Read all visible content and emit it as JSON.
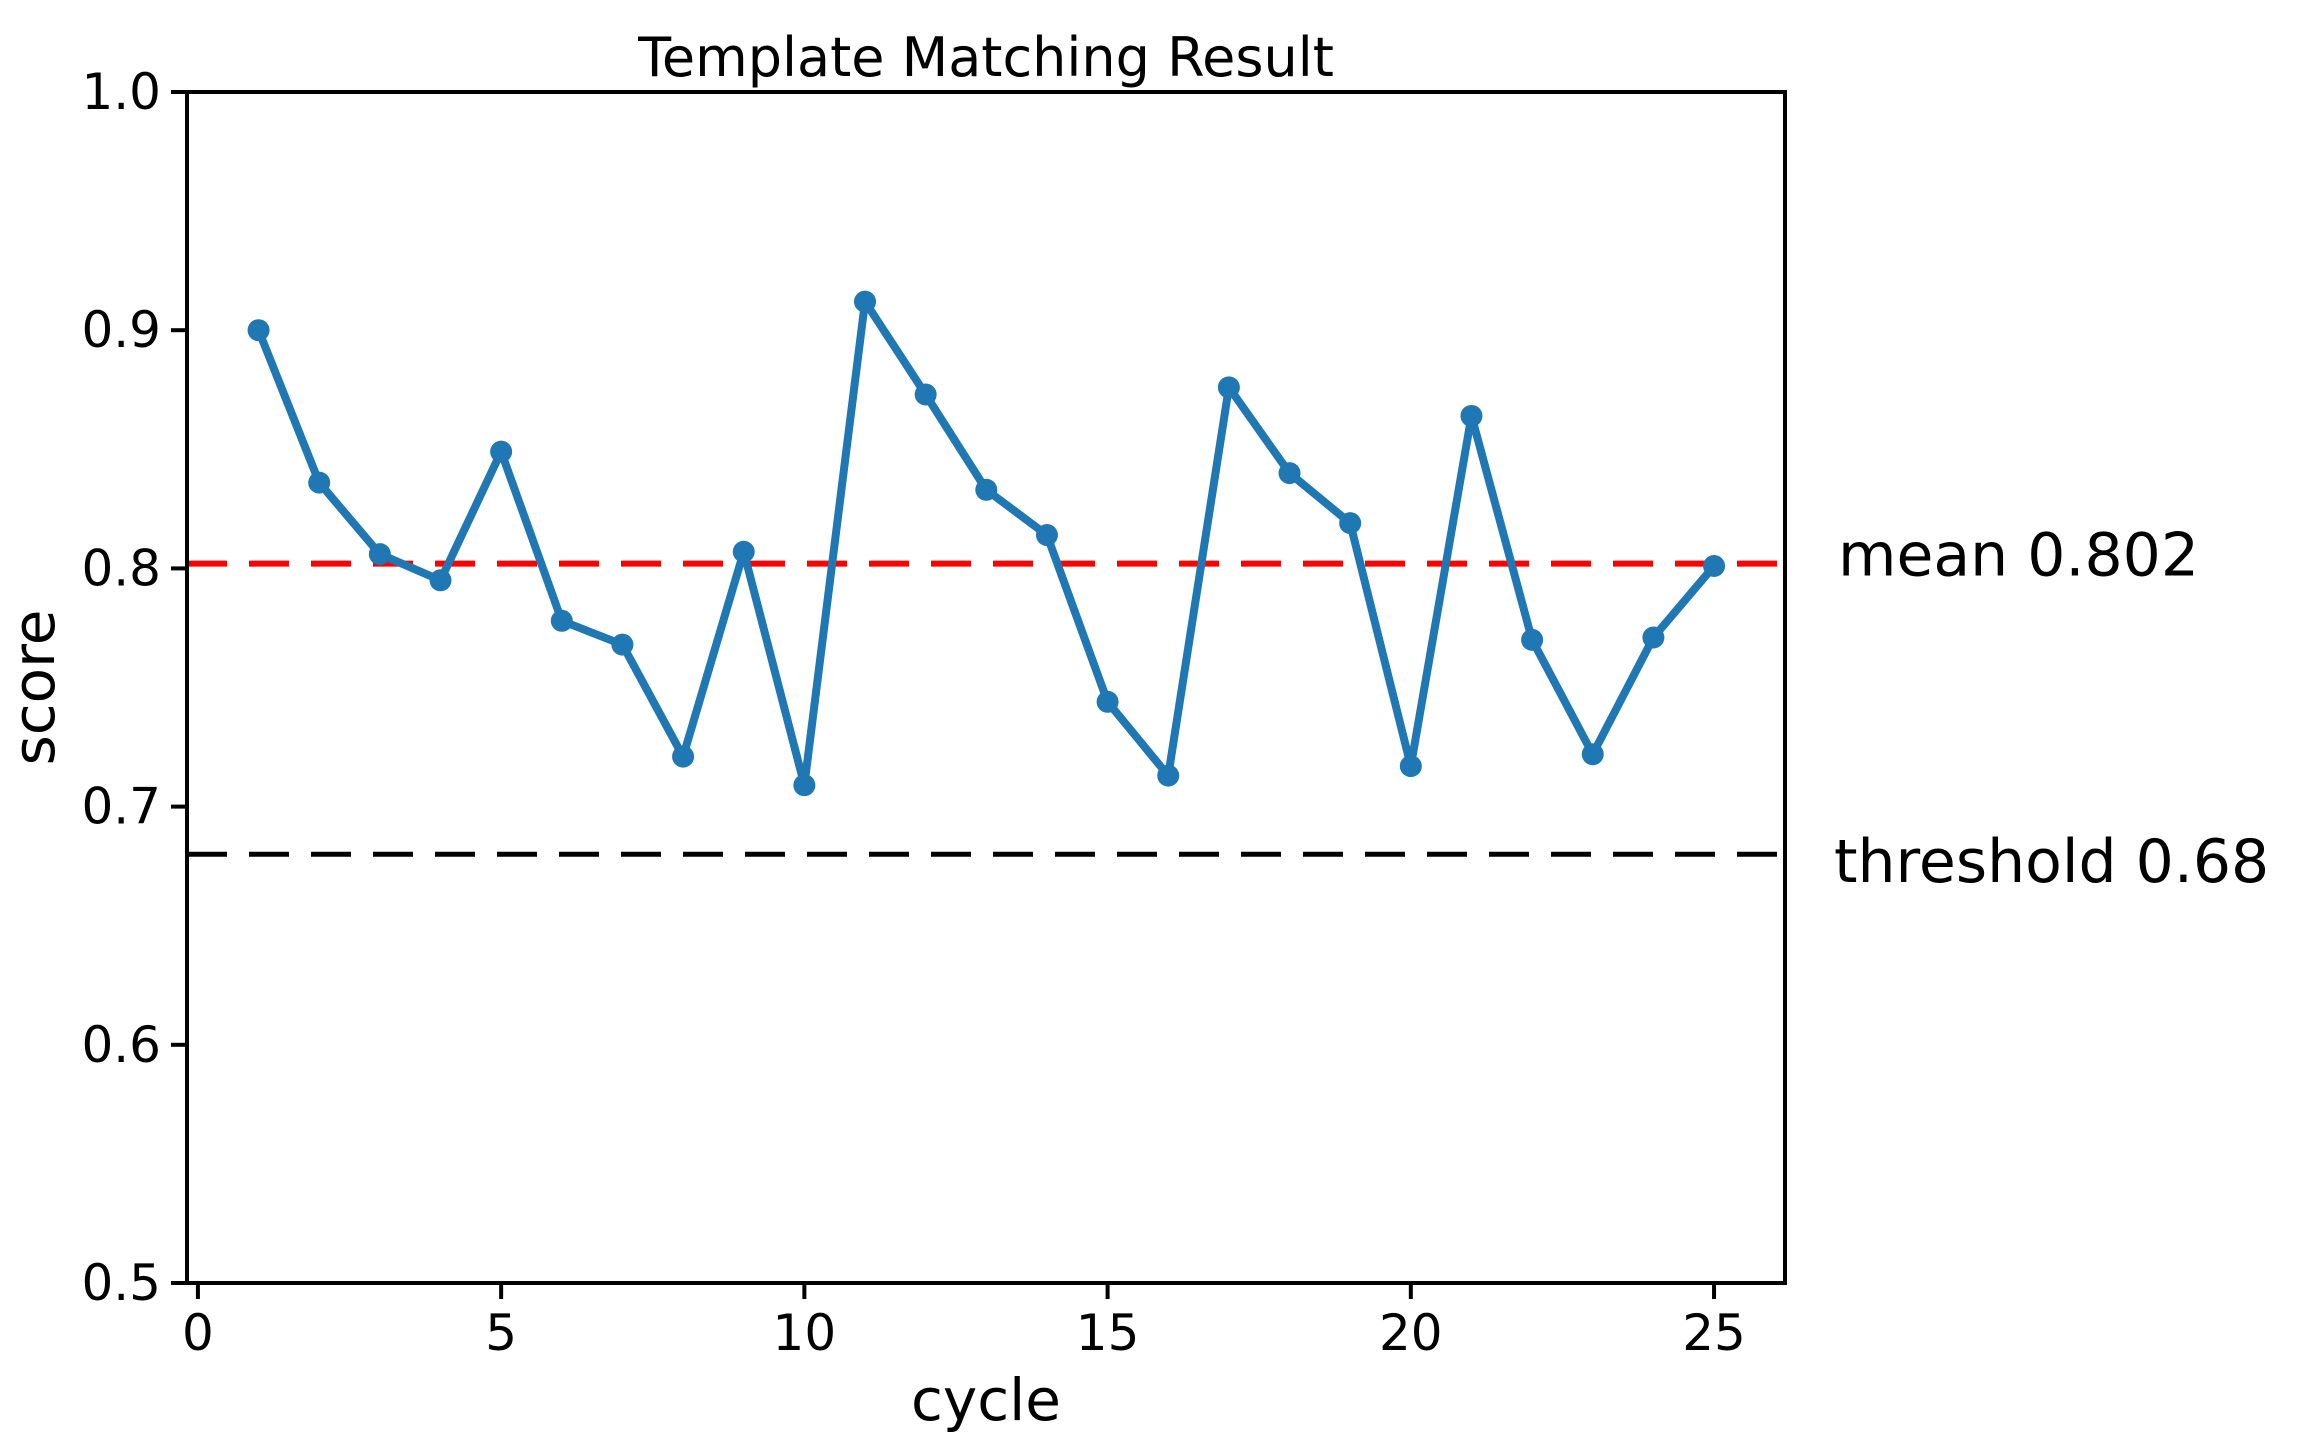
{
  "figure": {
    "title": "Template Matching Result",
    "xlabel": "cycle",
    "ylabel": "score"
  },
  "annotations": {
    "mean_label": "mean 0.802",
    "threshold_label": "threshold 0.68"
  },
  "colors": {
    "series": "#1f77b4",
    "mean_line": "#ff0000",
    "threshold_line": "#000000",
    "axis": "#000000",
    "background": "#ffffff"
  },
  "chart_data": {
    "type": "line",
    "title": "Template Matching Result",
    "xlabel": "cycle",
    "ylabel": "score",
    "x": [
      1,
      2,
      3,
      4,
      5,
      6,
      7,
      8,
      9,
      10,
      11,
      12,
      13,
      14,
      15,
      16,
      17,
      18,
      19,
      20,
      21,
      22,
      23,
      24,
      25
    ],
    "y": [
      0.9,
      0.836,
      0.806,
      0.795,
      0.849,
      0.778,
      0.768,
      0.721,
      0.807,
      0.709,
      0.912,
      0.873,
      0.833,
      0.814,
      0.744,
      0.713,
      0.876,
      0.84,
      0.819,
      0.717,
      0.864,
      0.77,
      0.722,
      0.771,
      0.801
    ],
    "mean": 0.802,
    "threshold": 0.68,
    "xlim": [
      -0.18,
      26.17
    ],
    "ylim": [
      0.5,
      1.0
    ],
    "xticks": [
      0,
      5,
      10,
      15,
      20,
      25
    ],
    "yticks": [
      0.5,
      0.6,
      0.7,
      0.8,
      0.9,
      1.0
    ],
    "ytick_decimals": 1,
    "grid": false,
    "legend": "none",
    "marker": "circle",
    "line_style": "solid",
    "mean_line_style": "dashed",
    "threshold_line_style": "dashed"
  }
}
